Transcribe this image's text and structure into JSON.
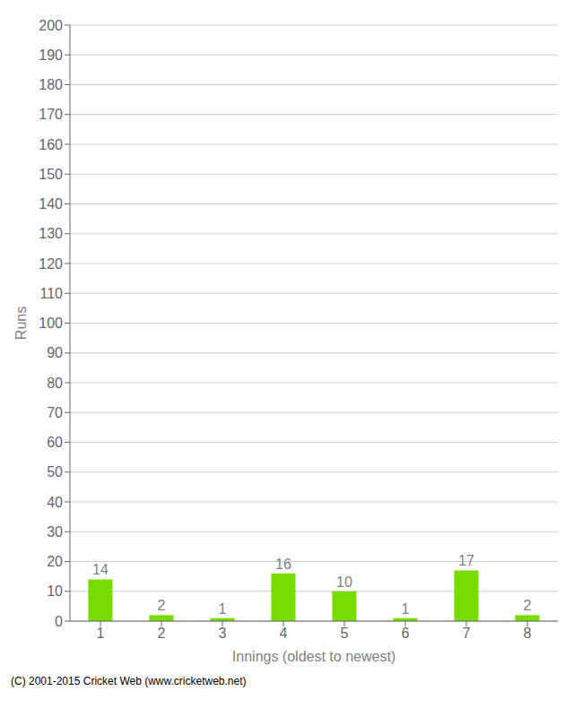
{
  "chart_data": {
    "type": "bar",
    "categories": [
      "1",
      "2",
      "3",
      "4",
      "5",
      "6",
      "7",
      "8"
    ],
    "values": [
      14,
      2,
      1,
      16,
      10,
      1,
      17,
      2
    ],
    "color": "#77dd00",
    "xlabel": "Innings (oldest to newest)",
    "ylabel": "Runs",
    "ylim": [
      0,
      200
    ],
    "yticks": [
      0,
      10,
      20,
      30,
      40,
      50,
      60,
      70,
      80,
      90,
      100,
      110,
      120,
      130,
      140,
      150,
      160,
      170,
      180,
      190,
      200
    ],
    "grid": true,
    "data_labels": true,
    "annotations": [
      "(C) 2001-2015 Cricket Web (www.cricketweb.net)"
    ]
  }
}
